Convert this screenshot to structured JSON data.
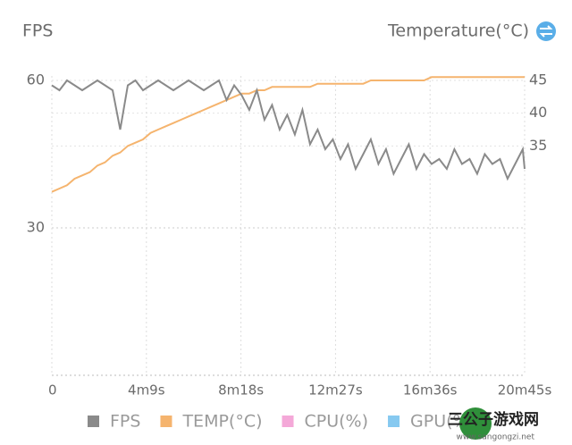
{
  "chart_data": {
    "type": "line",
    "left_axis_title": "FPS",
    "right_axis_title": "Temperature(°C)",
    "x": [
      0,
      20,
      40,
      60,
      80,
      100,
      120,
      140,
      160,
      180,
      200,
      220,
      240,
      260,
      280,
      300,
      320,
      340,
      360,
      380,
      400,
      420,
      440,
      460,
      480,
      500,
      520,
      540,
      560,
      580,
      600,
      620,
      640,
      660,
      680,
      700,
      720,
      740,
      760,
      780,
      800,
      820,
      840,
      860,
      880,
      900,
      920,
      940,
      960,
      980,
      1000,
      1020,
      1040,
      1060,
      1080,
      1100,
      1120,
      1140,
      1160,
      1180,
      1200,
      1220,
      1240,
      1245
    ],
    "xlim": [
      0,
      1245
    ],
    "xticks": [
      0,
      {
        "value": 249,
        "label": "4m9s"
      },
      {
        "value": 498,
        "label": "8m18s"
      },
      {
        "value": 747,
        "label": "12m27s"
      },
      {
        "value": 996,
        "label": "16m36s"
      },
      {
        "value": 1245,
        "label": "20m45s"
      }
    ],
    "ylim": [
      0,
      60
    ],
    "yticks": [
      30,
      60
    ],
    "y2lim": [
      0,
      45
    ],
    "y2ticks": [
      35,
      40,
      45
    ],
    "grid": true,
    "series": [
      {
        "name": "FPS",
        "color": "#8a8a8a",
        "values": [
          59,
          58,
          60,
          59,
          58,
          59,
          60,
          59,
          58,
          50,
          59,
          60,
          58,
          59,
          60,
          59,
          58,
          59,
          60,
          59,
          58,
          59,
          60,
          56,
          59,
          57,
          54,
          58,
          52,
          55,
          50,
          53,
          49,
          54,
          47,
          50,
          46,
          48,
          44,
          47,
          42,
          45,
          48,
          43,
          46,
          41,
          44,
          47,
          42,
          45,
          43,
          44,
          42,
          46,
          43,
          44,
          41,
          45,
          43,
          44,
          40,
          43,
          46,
          42
        ]
      },
      {
        "name": "TEMP(°C)",
        "color": "#f5b46e",
        "axis": "y2",
        "values": [
          28,
          28.5,
          29,
          30,
          30.5,
          31,
          32,
          32.5,
          33.5,
          34,
          35,
          35.5,
          36,
          37,
          37.5,
          38,
          38.5,
          39,
          39.5,
          40,
          40.5,
          41,
          41.5,
          42,
          42.5,
          43,
          43,
          43.5,
          43.5,
          44,
          44,
          44,
          44,
          44,
          44,
          44.5,
          44.5,
          44.5,
          44.5,
          44.5,
          44.5,
          44.5,
          45,
          45,
          45,
          45,
          45,
          45,
          45,
          45,
          45.5,
          45.5,
          45.5,
          45.5,
          45.5,
          45.5,
          45.5,
          45.5,
          45.5,
          45.5,
          45.5,
          45.5,
          45.5,
          45.5
        ]
      }
    ],
    "extra_legend": [
      {
        "name": "CPU(%)",
        "color": "#f4a8d8"
      },
      {
        "name": "GPU(%)",
        "color": "#86c9f0"
      }
    ]
  },
  "watermark": {
    "text": "三公子游戏网",
    "url": "www.sangongzi.net"
  }
}
